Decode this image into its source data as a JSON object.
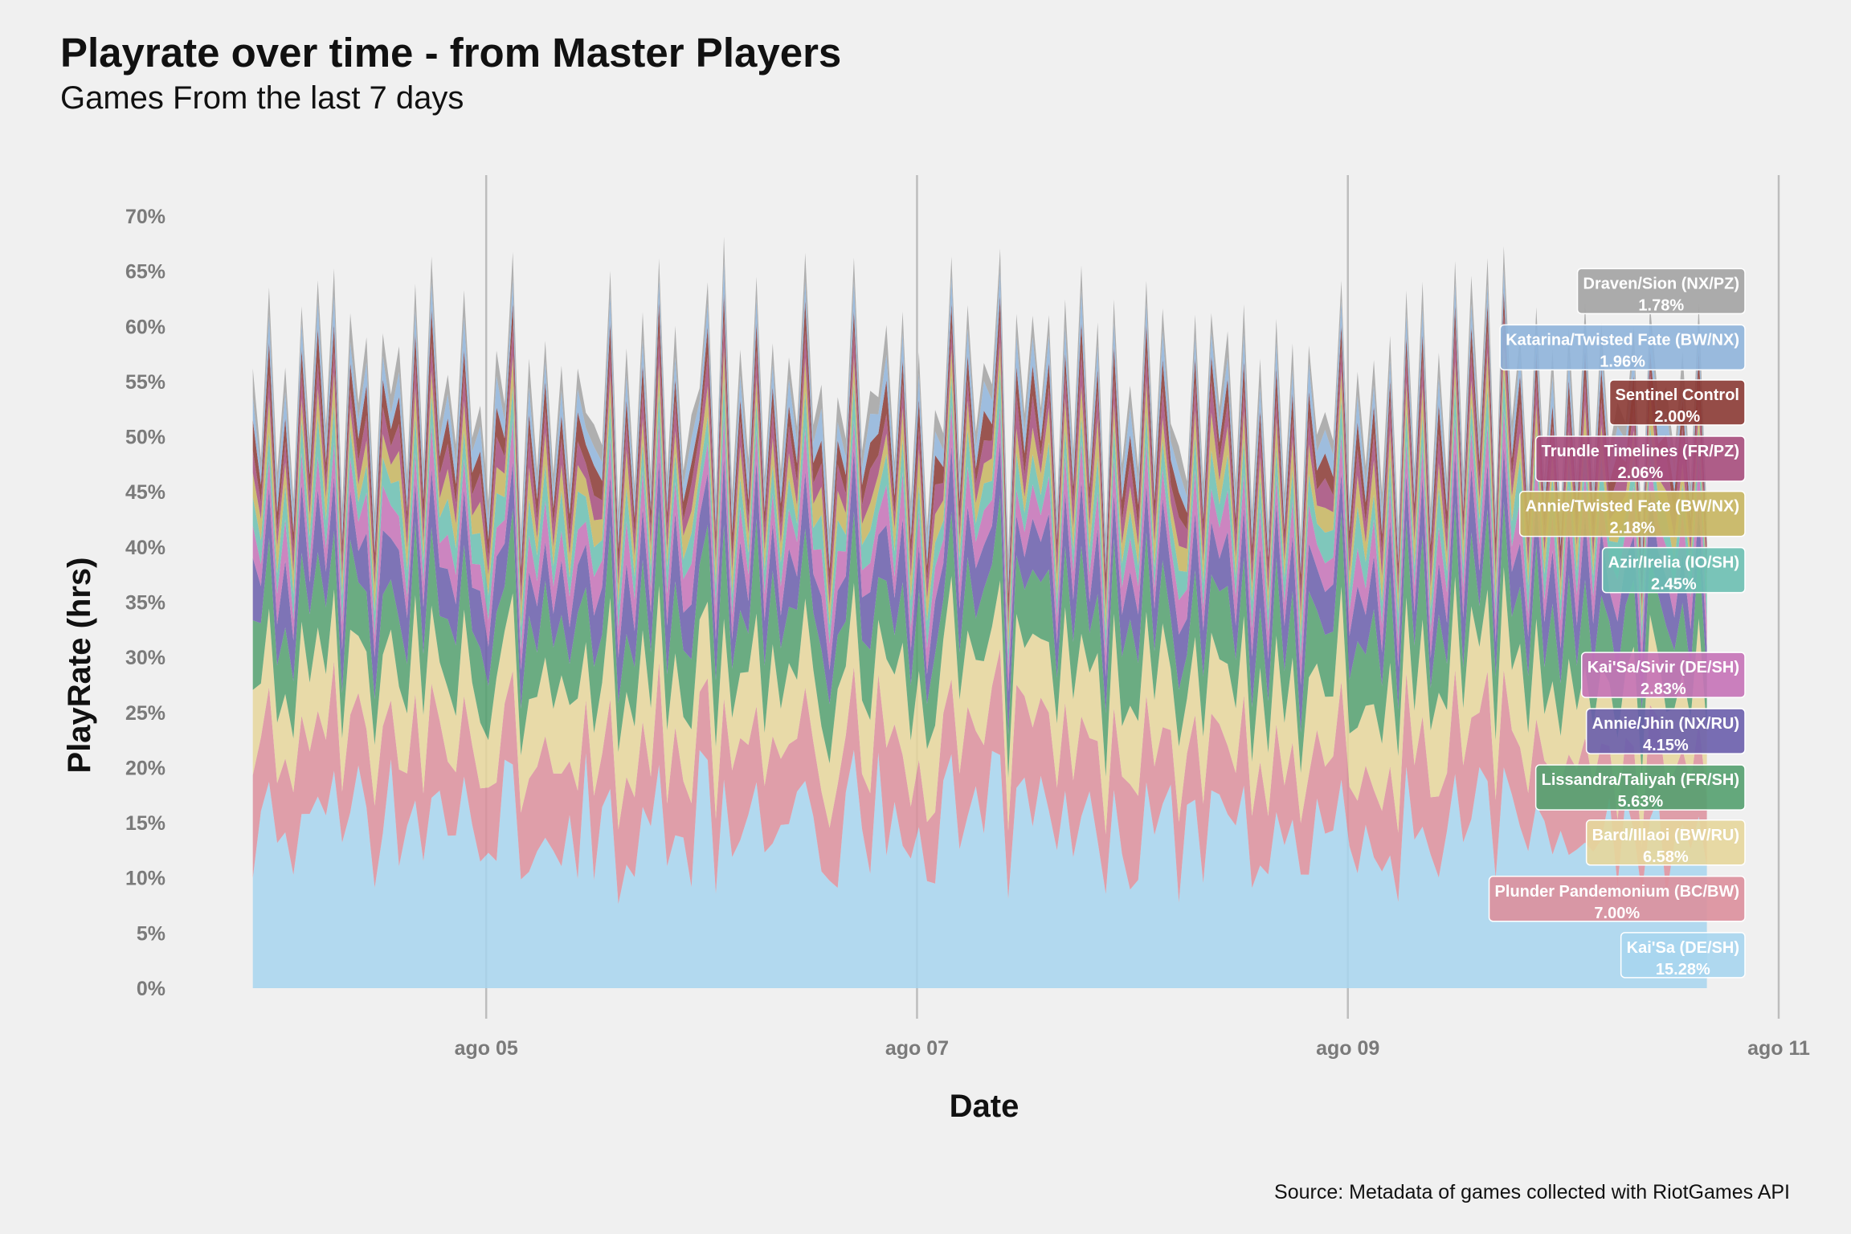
{
  "header": {
    "title": "Playrate over time - from Master Players",
    "subtitle": "Games From the last 7 days"
  },
  "caption": "Source: Metadata of games collected with RiotGames API",
  "chart_data": {
    "type": "area",
    "stacked": true,
    "title": "Playrate over time - from Master Players",
    "subtitle": "Games From the last 7 days",
    "xlabel": "Date",
    "ylabel": "PlayRate (hrs)",
    "x_ticks": [
      "ago 05",
      "ago 07",
      "ago 09",
      "ago 11"
    ],
    "y_ticks": [
      "0%",
      "5%",
      "10%",
      "15%",
      "20%",
      "25%",
      "30%",
      "35%",
      "40%",
      "45%",
      "50%",
      "55%",
      "60%",
      "65%",
      "70%"
    ],
    "xlim": [
      "2023-08-03T18:00",
      "2023-08-11T00:00"
    ],
    "ylim": [
      0,
      70
    ],
    "grid": "vertical major lines only",
    "x_range_data": [
      "2023-08-03T22:00",
      "2023-08-10T16:00"
    ],
    "series": [
      {
        "name": "Kai'Sa (DE/SH)",
        "label": "15.28%",
        "color": "#a7d5ee",
        "mean": 15.28
      },
      {
        "name": "Plunder Pandemonium (BC/BW)",
        "label": "7.00%",
        "color": "#dc8f9c",
        "mean": 7.0
      },
      {
        "name": "Bard/Illaoi (BW/RU)",
        "label": "6.58%",
        "color": "#e6d69b",
        "mean": 6.58
      },
      {
        "name": "Lissandra/Taliyah (FR/SH)",
        "label": "5.63%",
        "color": "#54a06f",
        "mean": 5.63
      },
      {
        "name": "Annie/Jhin (NX/RU)",
        "label": "4.15%",
        "color": "#6a5eac",
        "mean": 4.15
      },
      {
        "name": "Kai'Sa/Sivir (DE/SH)",
        "label": "2.83%",
        "color": "#c572b7",
        "mean": 2.83
      },
      {
        "name": "Azir/Irelia (IO/SH)",
        "label": "2.45%",
        "color": "#6bbfb1",
        "mean": 2.45
      },
      {
        "name": "Annie/Twisted Fate (BW/NX)",
        "label": "2.18%",
        "color": "#c7b55f",
        "mean": 2.18
      },
      {
        "name": "Trundle Timelines (FR/PZ)",
        "label": "2.06%",
        "color": "#a64d7c",
        "mean": 2.06
      },
      {
        "name": "Sentinel Control",
        "label": "2.00%",
        "color": "#8b3a34",
        "mean": 2.0
      },
      {
        "name": "Katarina/Twisted Fate (BW/NX)",
        "label": "1.96%",
        "color": "#8fb4da",
        "mean": 1.96
      },
      {
        "name": "Draven/Sion (NX/PZ)",
        "label": "1.78%",
        "color": "#a3a3a3",
        "mean": 1.78
      }
    ],
    "label_positions": [
      {
        "series": 11,
        "y": 63.2
      },
      {
        "series": 10,
        "y": 58.1
      },
      {
        "series": 9,
        "y": 53.1
      },
      {
        "series": 8,
        "y": 48.0
      },
      {
        "series": 7,
        "y": 43.0
      },
      {
        "series": 6,
        "y": 37.9
      },
      {
        "series": 5,
        "y": 28.4
      },
      {
        "series": 4,
        "y": 23.3
      },
      {
        "series": 3,
        "y": 18.2
      },
      {
        "series": 2,
        "y": 13.2
      },
      {
        "series": 1,
        "y": 8.1
      },
      {
        "series": 0,
        "y": 3.0
      }
    ]
  }
}
